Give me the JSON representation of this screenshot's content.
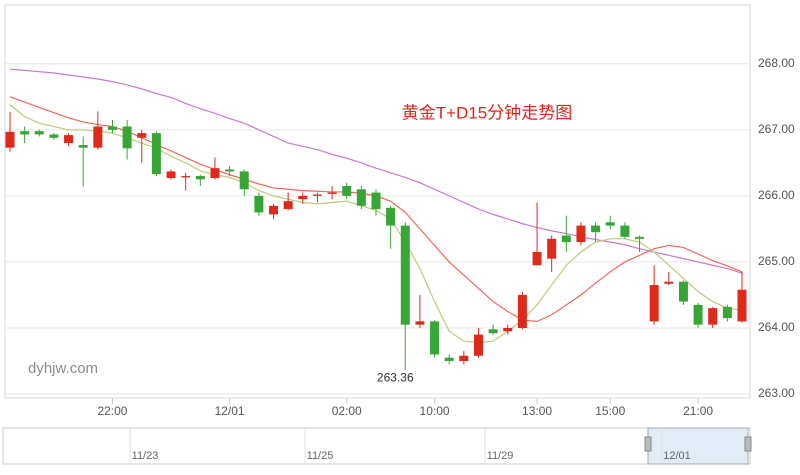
{
  "chart_data": {
    "type": "candlestick",
    "title": "黄金T+D15分钟走势图",
    "watermark": "dyhjw.com",
    "min_annotation": 263.36,
    "up_color": "#dd2a1b",
    "down_color": "#37a637",
    "categories": [
      null,
      null,
      null,
      null,
      null,
      null,
      null,
      "22:00",
      null,
      null,
      null,
      null,
      null,
      null,
      null,
      "12/01",
      null,
      null,
      null,
      null,
      null,
      null,
      null,
      "02:00",
      null,
      null,
      null,
      null,
      null,
      "10:00",
      null,
      null,
      null,
      null,
      null,
      null,
      "13:00",
      null,
      null,
      null,
      null,
      "15:00",
      null,
      null,
      null,
      null,
      null,
      "21:00",
      null,
      null,
      null
    ],
    "open": [
      266.73,
      266.98,
      266.98,
      266.93,
      266.8,
      266.77,
      266.73,
      267.05,
      267.05,
      266.88,
      266.95,
      266.27,
      266.28,
      266.3,
      266.27,
      266.4,
      266.37,
      266.0,
      265.72,
      265.8,
      265.95,
      266.0,
      266.03,
      266.15,
      266.1,
      266.05,
      265.82,
      265.55,
      264.05,
      264.1,
      263.55,
      263.5,
      263.58,
      263.98,
      263.95,
      264.0,
      264.95,
      265.05,
      265.4,
      265.3,
      265.55,
      265.6,
      265.55,
      265.38,
      264.1,
      264.67,
      264.7,
      264.35,
      264.05,
      264.32,
      264.1
    ],
    "high": [
      267.27,
      267.05,
      267.0,
      266.95,
      266.95,
      266.9,
      267.28,
      267.15,
      267.15,
      267.0,
      266.98,
      266.4,
      266.35,
      266.32,
      266.58,
      266.45,
      266.4,
      266.05,
      265.88,
      266.05,
      266.05,
      266.05,
      266.15,
      266.2,
      266.15,
      266.1,
      265.85,
      265.6,
      264.5,
      264.12,
      263.6,
      263.65,
      264.0,
      264.05,
      264.05,
      264.55,
      265.9,
      265.4,
      265.7,
      265.6,
      265.6,
      265.7,
      265.6,
      265.4,
      264.95,
      264.85,
      264.72,
      264.38,
      264.32,
      264.35,
      264.85
    ],
    "low": [
      266.67,
      266.8,
      266.9,
      266.85,
      266.75,
      266.14,
      266.7,
      266.95,
      266.55,
      266.5,
      266.3,
      266.25,
      266.08,
      266.15,
      266.25,
      266.3,
      266.0,
      265.7,
      265.65,
      265.78,
      265.88,
      265.9,
      265.95,
      265.95,
      265.8,
      265.7,
      265.2,
      263.36,
      264.0,
      263.55,
      263.45,
      263.45,
      263.55,
      263.9,
      263.9,
      263.98,
      264.95,
      264.85,
      265.15,
      265.25,
      265.3,
      265.5,
      265.35,
      265.15,
      264.05,
      264.65,
      264.35,
      264.0,
      264.0,
      264.1,
      264.08
    ],
    "close": [
      266.97,
      266.93,
      266.93,
      266.88,
      266.92,
      266.73,
      267.05,
      267.0,
      266.72,
      266.95,
      266.33,
      266.37,
      266.3,
      266.25,
      266.42,
      266.37,
      266.1,
      265.75,
      265.85,
      265.92,
      266.0,
      266.02,
      266.05,
      266.0,
      265.85,
      265.8,
      265.55,
      264.05,
      264.1,
      263.6,
      263.5,
      263.58,
      263.9,
      263.92,
      264.0,
      264.5,
      265.15,
      265.35,
      265.3,
      265.55,
      265.45,
      265.55,
      265.38,
      265.35,
      264.65,
      264.7,
      264.4,
      264.05,
      264.3,
      264.15,
      264.58
    ],
    "series": [
      {
        "color": "#c879d3",
        "values": [
          267.92,
          267.9,
          267.88,
          267.86,
          267.83,
          267.8,
          267.77,
          267.73,
          267.68,
          267.62,
          267.55,
          267.49,
          267.4,
          267.32,
          267.25,
          267.17,
          267.1,
          267.0,
          266.9,
          266.8,
          266.75,
          266.7,
          266.63,
          266.57,
          266.5,
          266.42,
          266.35,
          266.28,
          266.2,
          266.1,
          266.0,
          265.9,
          265.8,
          265.72,
          265.65,
          265.58,
          265.52,
          265.47,
          265.43,
          265.38,
          265.34,
          265.3,
          265.26,
          265.2,
          265.15,
          265.1,
          265.05,
          265.0,
          264.95,
          264.9,
          264.83
        ]
      },
      {
        "color": "#f2675a",
        "values": [
          267.5,
          267.42,
          267.34,
          267.26,
          267.18,
          267.12,
          267.08,
          267.05,
          266.98,
          266.88,
          266.78,
          266.68,
          266.58,
          266.48,
          266.4,
          266.32,
          266.25,
          266.18,
          266.12,
          266.1,
          266.08,
          266.07,
          266.06,
          266.06,
          266.04,
          266.0,
          265.92,
          265.75,
          265.5,
          265.25,
          265.0,
          264.8,
          264.6,
          264.4,
          264.25,
          264.12,
          264.1,
          264.2,
          264.35,
          264.5,
          264.68,
          264.85,
          265.0,
          265.1,
          265.2,
          265.25,
          265.22,
          265.12,
          265.02,
          264.94,
          264.85
        ]
      },
      {
        "color": "#bccb78",
        "values": [
          267.38,
          267.2,
          267.1,
          267.05,
          267.0,
          267.0,
          266.98,
          266.95,
          266.88,
          266.8,
          266.72,
          266.6,
          266.5,
          266.38,
          266.32,
          266.28,
          266.2,
          266.08,
          266.0,
          265.95,
          265.9,
          265.88,
          265.9,
          265.92,
          265.85,
          265.78,
          265.65,
          265.3,
          264.9,
          264.4,
          263.95,
          263.8,
          263.78,
          263.8,
          263.95,
          264.12,
          264.35,
          264.65,
          264.95,
          265.15,
          265.3,
          265.35,
          265.35,
          265.3,
          265.15,
          264.95,
          264.75,
          264.55,
          264.4,
          264.3,
          264.27
        ]
      }
    ],
    "ylim": [
      262.94,
      268.89
    ],
    "yticks": [
      {
        "value": 263,
        "label": "263.00"
      },
      {
        "value": 264,
        "label": "264.00"
      },
      {
        "value": 265,
        "label": "265.00"
      },
      {
        "value": 266,
        "label": "266.00"
      },
      {
        "value": 267,
        "label": "267.00"
      },
      {
        "value": 268,
        "label": "268.00"
      }
    ],
    "grid": true,
    "navigator_labels": [
      "11/23",
      "11/25",
      "11/29",
      "12/01"
    ]
  }
}
